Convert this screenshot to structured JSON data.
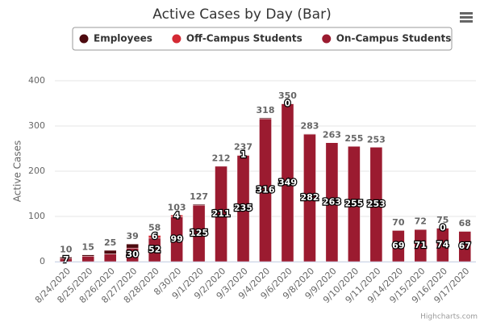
{
  "chart_data": {
    "type": "stacked-bar",
    "title": "Active Cases by Day (Bar)",
    "y_label": "Active Cases",
    "categories": [
      "8/24/2020",
      "8/25/2020",
      "8/26/2020",
      "8/27/2020",
      "8/28/2020",
      "8/30/20",
      "9/1/2020",
      "9/2/2020",
      "9/3/2020",
      "9/4/2020",
      "9/6/2020",
      "9/8/2020",
      "9/9/2020",
      "9/10/2020",
      "9/11/2020",
      "9/14/2020",
      "9/15/2020",
      "9/16/2020",
      "9/17/2020"
    ],
    "series": [
      {
        "name": "Employees",
        "color": "#4d0a0f",
        "data_labels": false,
        "values": [
          3,
          3,
          8,
          9,
          0,
          0,
          2,
          1,
          1,
          2,
          1,
          1,
          0,
          0,
          0,
          1,
          1,
          1,
          1
        ]
      },
      {
        "name": "Off-Campus Students",
        "color": "#d42a34",
        "data_labels": true,
        "values": [
          null,
          null,
          null,
          null,
          6,
          4,
          null,
          null,
          1,
          null,
          0,
          null,
          null,
          null,
          null,
          null,
          null,
          0,
          null
        ]
      },
      {
        "name": "On-Campus Students",
        "color": "#9b1b30",
        "data_labels": true,
        "values": [
          7,
          12,
          17,
          30,
          52,
          99,
          125,
          211,
          235,
          316,
          349,
          282,
          263,
          255,
          253,
          69,
          71,
          74,
          67
        ]
      }
    ],
    "stack_totals": [
      10,
      15,
      25,
      39,
      58,
      103,
      127,
      212,
      237,
      318,
      350,
      283,
      263,
      255,
      253,
      70,
      72,
      75,
      68
    ],
    "ylim": [
      0,
      400
    ],
    "yticks": [
      0,
      100,
      200,
      300,
      400
    ],
    "grid": true,
    "credits": "Highcharts.com"
  }
}
